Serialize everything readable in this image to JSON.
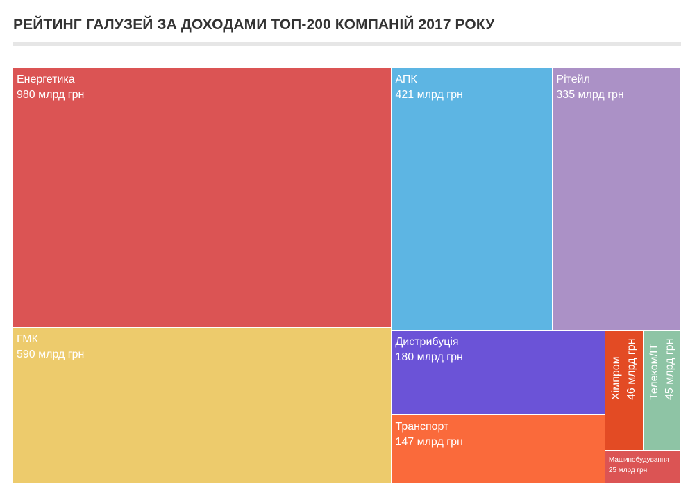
{
  "title": "РЕЙТИНГ ГАЛУЗЕЙ ЗА ДОХОДАМИ ТОП-200 КОМПАНІЙ 2017 РОКУ",
  "chart_data": {
    "type": "treemap",
    "unit": "млрд грн",
    "items": [
      {
        "name": "Енергетика",
        "value": 980,
        "value_label": "980 млрд грн",
        "color": "#db5454"
      },
      {
        "name": "ГМК",
        "value": 590,
        "value_label": "590 млрд грн",
        "color": "#edcb6c"
      },
      {
        "name": "АПК",
        "value": 421,
        "value_label": "421 млрд грн",
        "color": "#5db5e3"
      },
      {
        "name": "Рітейл",
        "value": 335,
        "value_label": "335 млрд грн",
        "color": "#ab91c6"
      },
      {
        "name": "Дистрибуція",
        "value": 180,
        "value_label": "180 млрд грн",
        "color": "#6b53d7"
      },
      {
        "name": "Транспорт",
        "value": 147,
        "value_label": "147 млрд грн",
        "color": "#fa6a3b"
      },
      {
        "name": "Хімпром",
        "value": 46,
        "value_label": "46 млрд грн",
        "color": "#e34b24"
      },
      {
        "name": "Телеком/IT",
        "value": 45,
        "value_label": "45 млрд грн",
        "color": "#8ec4a5"
      },
      {
        "name": "Машинобудування",
        "value": 25,
        "value_label": "25 млрд грн",
        "color": "#db5454"
      }
    ]
  }
}
